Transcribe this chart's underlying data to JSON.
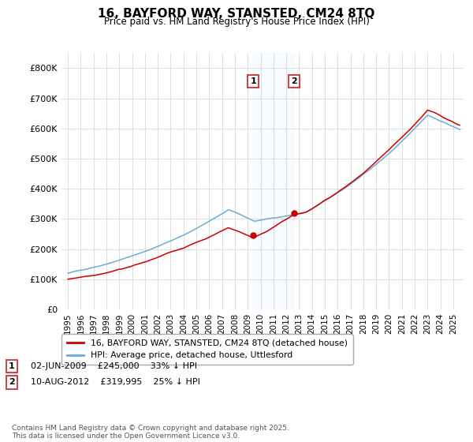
{
  "title": "16, BAYFORD WAY, STANSTED, CM24 8TQ",
  "subtitle": "Price paid vs. HM Land Registry's House Price Index (HPI)",
  "legend_line1": "16, BAYFORD WAY, STANSTED, CM24 8TQ (detached house)",
  "legend_line2": "HPI: Average price, detached house, Uttlesford",
  "annotation1_text": "02-JUN-2009    £245,000    33% ↓ HPI",
  "annotation2_text": "10-AUG-2012    £319,995    25% ↓ HPI",
  "sale1_year": 2009.42,
  "sale2_year": 2012.61,
  "sale1_price": 245000,
  "sale2_price": 319995,
  "hpi_color": "#6baed6",
  "price_color": "#cc0000",
  "background_color": "#ffffff",
  "grid_color": "#dddddd",
  "shade_color": "#ddeeff",
  "footer": "Contains HM Land Registry data © Crown copyright and database right 2025.\nThis data is licensed under the Open Government Licence v3.0.",
  "ylim": [
    0,
    850000
  ],
  "xlim_start": 1994.5,
  "xlim_end": 2025.8,
  "yticks": [
    0,
    100000,
    200000,
    300000,
    400000,
    500000,
    600000,
    700000,
    800000
  ],
  "ytick_labels": [
    "£0",
    "£100K",
    "£200K",
    "£300K",
    "£400K",
    "£500K",
    "£600K",
    "£700K",
    "£800K"
  ]
}
